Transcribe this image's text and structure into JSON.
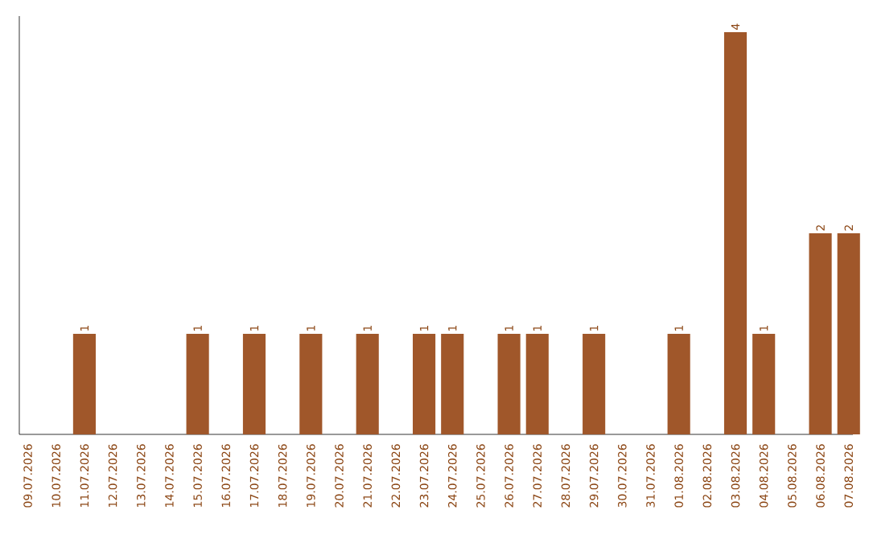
{
  "chart_data": {
    "type": "bar",
    "categories": [
      "09.07.2026",
      "10.07.2026",
      "11.07.2026",
      "12.07.2026",
      "13.07.2026",
      "14.07.2026",
      "15.07.2026",
      "16.07.2026",
      "17.07.2026",
      "18.07.2026",
      "19.07.2026",
      "20.07.2026",
      "21.07.2026",
      "22.07.2026",
      "23.07.2026",
      "24.07.2026",
      "25.07.2026",
      "26.07.2026",
      "27.07.2026",
      "28.07.2026",
      "29.07.2026",
      "30.07.2026",
      "31.07.2026",
      "01.08.2026",
      "02.08.2026",
      "03.08.2026",
      "04.08.2026",
      "05.08.2026",
      "06.08.2026",
      "07.08.2026"
    ],
    "values": [
      0,
      0,
      1,
      0,
      0,
      0,
      1,
      0,
      1,
      0,
      1,
      0,
      1,
      0,
      1,
      1,
      0,
      1,
      1,
      0,
      1,
      0,
      0,
      1,
      0,
      4,
      1,
      0,
      2,
      2
    ],
    "value_labels": [
      null,
      null,
      "1",
      null,
      null,
      null,
      "1",
      null,
      "1",
      null,
      "1",
      null,
      "1",
      null,
      "1",
      "1",
      null,
      "1",
      "1",
      null,
      "1",
      null,
      null,
      "1",
      null,
      "4",
      "1",
      null,
      "2",
      "2"
    ],
    "color": "#a0572a",
    "grid": false
  }
}
